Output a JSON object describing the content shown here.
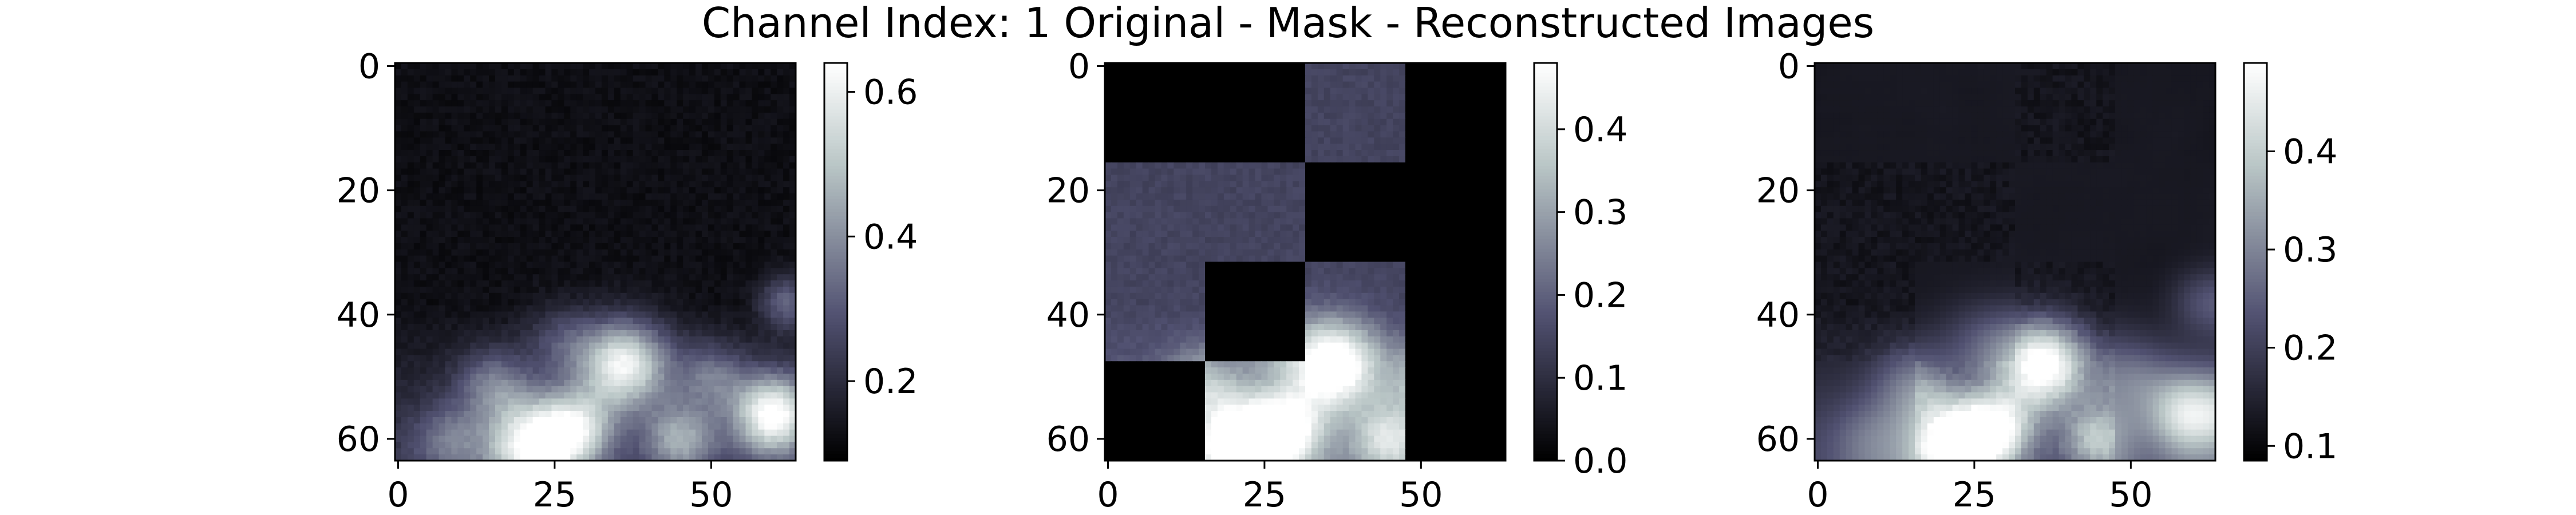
{
  "figure": {
    "title": "Channel Index: 1 Original - Mask - Reconstructed Images"
  },
  "chart_data": [
    {
      "type": "heatmap",
      "panel": "original",
      "colormap": "bone",
      "grid_size": [
        64,
        64
      ],
      "xlim": [
        0,
        63
      ],
      "ylim": [
        63,
        0
      ],
      "x_ticks": [
        0,
        25,
        50
      ],
      "y_ticks": [
        0,
        20,
        40,
        60
      ],
      "colorbar": {
        "range": [
          0.09,
          0.64
        ],
        "ticks": [
          0.2,
          0.4,
          0.6
        ]
      },
      "description": "Dark background around 0.12 in top two-thirds; bright blob cluster in bottom third (peaks ~0.6 near x=22,y=61; x=36,y=48; x=60,y=56)"
    },
    {
      "type": "heatmap",
      "panel": "mask",
      "colormap": "bone",
      "grid_size": [
        64,
        64
      ],
      "xlim": [
        0,
        63
      ],
      "ylim": [
        63,
        0
      ],
      "x_ticks": [
        0,
        25,
        50
      ],
      "y_ticks": [
        0,
        20,
        40,
        60
      ],
      "colorbar": {
        "range": [
          0.0,
          0.48
        ],
        "ticks": [
          0.0,
          0.1,
          0.2,
          0.3,
          0.4
        ]
      },
      "patch_size": 16,
      "masked_patches": [
        [
          0,
          0
        ],
        [
          0,
          1
        ],
        [
          0,
          3
        ],
        [
          1,
          2
        ],
        [
          1,
          3
        ],
        [
          2,
          1
        ],
        [
          2,
          3
        ],
        [
          3,
          0
        ],
        [
          3,
          3
        ]
      ]
    },
    {
      "type": "heatmap",
      "panel": "reconstructed",
      "colormap": "bone",
      "grid_size": [
        64,
        64
      ],
      "xlim": [
        0,
        63
      ],
      "ylim": [
        63,
        0
      ],
      "x_ticks": [
        0,
        25,
        50
      ],
      "y_ticks": [
        0,
        20,
        40,
        60
      ],
      "colorbar": {
        "range": [
          0.085,
          0.49
        ],
        "ticks": [
          0.1,
          0.2,
          0.3,
          0.4
        ]
      },
      "description": "Reconstruction of the original; smooth blurry patches in masked regions, bright blobs in bottom third"
    }
  ]
}
